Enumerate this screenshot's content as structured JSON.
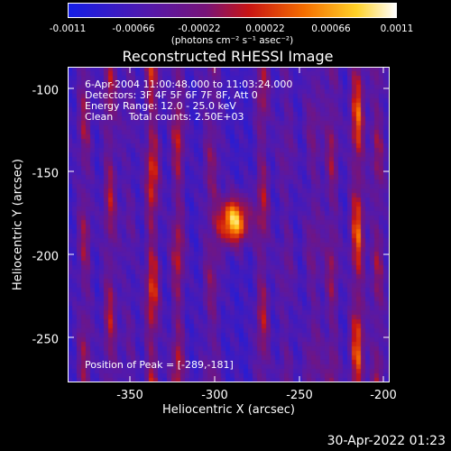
{
  "colorbar": {
    "ticks": [
      "-0.0011",
      "-0.00066",
      "-0.00022",
      "0.00022",
      "0.00066",
      "0.0011"
    ],
    "units": "(photons cm⁻² s⁻¹ asec⁻²)"
  },
  "chart_data": {
    "type": "heatmap",
    "title": "Reconstructed RHESSI Image",
    "xlabel": "Heliocentric X (arcsec)",
    "ylabel": "Heliocentric Y (arcsec)",
    "xlim": [
      -387,
      -197
    ],
    "ylim": [
      -278,
      -88
    ],
    "x_ticks": [
      "-350",
      "-300",
      "-250",
      "-200"
    ],
    "y_ticks": [
      "-100",
      "-150",
      "-200",
      "-250"
    ],
    "color_range": [
      -0.0011,
      0.0011
    ],
    "peak_position": [
      -289,
      -181
    ],
    "annotations": [
      "6-Apr-2004 11:00:48.000 to 11:03:24.000",
      "Detectors: 3F 4F 5F 6F 7F 8F, Att 0",
      "Energy Range: 12.0 - 25.0 keV",
      "Clean     Total counts: 2.50E+03"
    ],
    "peak_label": "Position of Peak = [-289,-181]"
  },
  "timestamp": "30-Apr-2022 01:23"
}
